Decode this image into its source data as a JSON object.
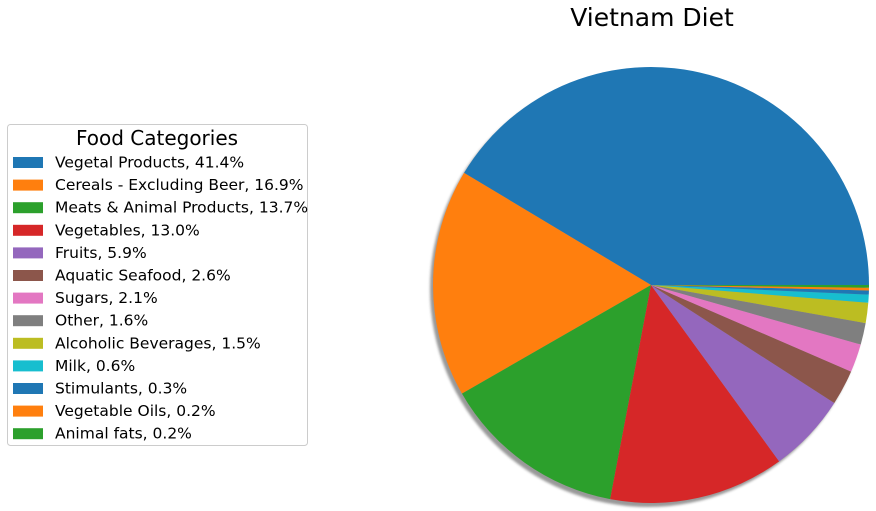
{
  "chart_data": {
    "type": "pie",
    "title": "Vietnam Diet",
    "legend_title": "Food Categories",
    "legend_position": "left",
    "shadow": true,
    "start_angle_deg": 0,
    "direction": "counterclockwise",
    "slices": [
      {
        "label": "Vegetal Products, 41.4%",
        "category": "Vegetal Products",
        "value": 41.4,
        "color": "#1f77b4"
      },
      {
        "label": "Cereals - Excluding Beer, 16.9%",
        "category": "Cereals - Excluding Beer",
        "value": 16.9,
        "color": "#ff7f0e"
      },
      {
        "label": "Meats & Animal Products, 13.7%",
        "category": "Meats & Animal Products",
        "value": 13.7,
        "color": "#2ca02c"
      },
      {
        "label": "Vegetables, 13.0%",
        "category": "Vegetables",
        "value": 13.0,
        "color": "#d62728"
      },
      {
        "label": "Fruits, 5.9%",
        "category": "Fruits",
        "value": 5.9,
        "color": "#9467bd"
      },
      {
        "label": "Aquatic Seafood, 2.6%",
        "category": "Aquatic Seafood",
        "value": 2.6,
        "color": "#8c564b"
      },
      {
        "label": "Sugars, 2.1%",
        "category": "Sugars",
        "value": 2.1,
        "color": "#e377c2"
      },
      {
        "label": "Other, 1.6%",
        "category": "Other",
        "value": 1.6,
        "color": "#7f7f7f"
      },
      {
        "label": "Alcoholic Beverages, 1.5%",
        "category": "Alcoholic Beverages",
        "value": 1.5,
        "color": "#bcbd22"
      },
      {
        "label": "Milk, 0.6%",
        "category": "Milk",
        "value": 0.6,
        "color": "#17becf"
      },
      {
        "label": "Stimulants, 0.3%",
        "category": "Stimulants",
        "value": 0.3,
        "color": "#1f77b4"
      },
      {
        "label": "Vegetable Oils, 0.2%",
        "category": "Vegetable Oils",
        "value": 0.2,
        "color": "#ff7f0e"
      },
      {
        "label": "Animal fats, 0.2%",
        "category": "Animal fats",
        "value": 0.2,
        "color": "#2ca02c"
      }
    ]
  }
}
